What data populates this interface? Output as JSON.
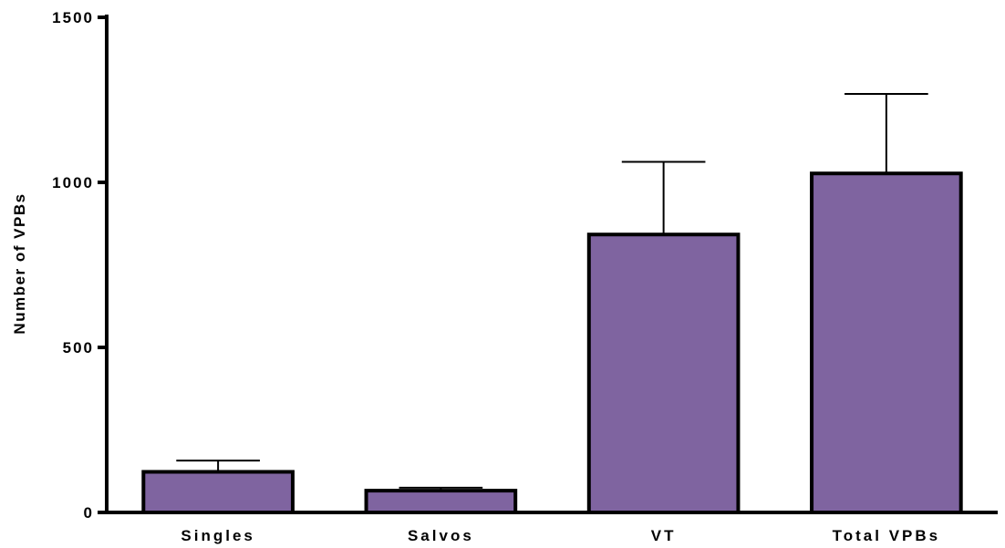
{
  "chart_data": {
    "type": "bar",
    "title": "",
    "xlabel": "",
    "ylabel": "Number of VPBs",
    "categories": [
      "Singles",
      "Salvos",
      "VT",
      "Total VPBs"
    ],
    "values": [
      123,
      66,
      842,
      1027
    ],
    "error_upper": [
      157,
      75,
      1062,
      1268
    ],
    "ylim": [
      0,
      1500
    ],
    "yticks": [
      0,
      500,
      1000,
      1500
    ],
    "ytick_labels": [
      "0",
      "500",
      "1000",
      "1500"
    ],
    "grid": false,
    "legend": "none",
    "bar_color": "#7f64a0",
    "edge_color": "#000000"
  }
}
